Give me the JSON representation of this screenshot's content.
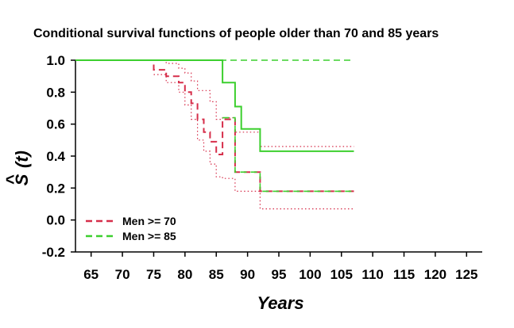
{
  "chart_data": {
    "type": "line",
    "title": "Conditional survival functions of people older than 70 and 85 years",
    "xlabel": "Years",
    "ylabel_main": "S",
    "ylabel_paren": "(t)",
    "ylabel_hat": "^",
    "xlim": [
      62.5,
      127.5
    ],
    "ylim": [
      -0.2,
      1.0
    ],
    "x_ticks": [
      65,
      70,
      75,
      80,
      85,
      90,
      95,
      100,
      105,
      110,
      115,
      120,
      125
    ],
    "y_ticks": [
      1.0,
      0.8,
      0.6,
      0.4,
      0.2,
      0.0,
      -0.2
    ],
    "y_tick_labels": [
      "1.0",
      "0.8",
      "0.6",
      "0.4",
      "0.2",
      "0.0",
      "-0.2"
    ],
    "grid": false,
    "legend_position": "bottom-left",
    "legend": [
      {
        "label": "Men >= 70",
        "color": "#d62e4a"
      },
      {
        "label": "Men >= 85",
        "color": "#3ccf2e"
      }
    ],
    "colors": {
      "men70": "#d62e4a",
      "men85": "#3ccf2e"
    },
    "series": [
      {
        "name": "Men >= 70",
        "role": "estimate",
        "color": "#d62e4a",
        "dash": "dashed",
        "points": [
          [
            62.5,
            1.0
          ],
          [
            75,
            1.0
          ],
          [
            75,
            0.94
          ],
          [
            77,
            0.94
          ],
          [
            77,
            0.9
          ],
          [
            79,
            0.9
          ],
          [
            79,
            0.86
          ],
          [
            80,
            0.86
          ],
          [
            80,
            0.8
          ],
          [
            81,
            0.8
          ],
          [
            81,
            0.73
          ],
          [
            82,
            0.73
          ],
          [
            82,
            0.63
          ],
          [
            83,
            0.63
          ],
          [
            83,
            0.55
          ],
          [
            84,
            0.55
          ],
          [
            84,
            0.49
          ],
          [
            85,
            0.49
          ],
          [
            85,
            0.41
          ],
          [
            86,
            0.41
          ],
          [
            86,
            0.63
          ],
          [
            88,
            0.63
          ],
          [
            88,
            0.3
          ],
          [
            92,
            0.3
          ],
          [
            92,
            0.18
          ],
          [
            107,
            0.18
          ]
        ]
      },
      {
        "name": "Men >= 70 upper CI",
        "role": "ci",
        "color": "#d62e4a",
        "dash": "dotted",
        "points": [
          [
            75,
            1.0
          ],
          [
            77,
            1.0
          ],
          [
            77,
            0.98
          ],
          [
            79,
            0.98
          ],
          [
            79,
            0.95
          ],
          [
            80,
            0.95
          ],
          [
            80,
            0.92
          ],
          [
            81,
            0.92
          ],
          [
            81,
            0.87
          ],
          [
            82,
            0.87
          ],
          [
            82,
            0.81
          ],
          [
            84,
            0.81
          ],
          [
            84,
            0.74
          ],
          [
            85,
            0.74
          ],
          [
            85,
            0.63
          ],
          [
            86,
            0.63
          ],
          [
            86,
            0.64
          ],
          [
            88,
            0.64
          ],
          [
            88,
            0.55
          ],
          [
            92,
            0.55
          ],
          [
            92,
            0.46
          ],
          [
            107,
            0.46
          ]
        ]
      },
      {
        "name": "Men >= 70 lower CI",
        "role": "ci",
        "color": "#d62e4a",
        "dash": "dotted",
        "points": [
          [
            75,
            0.91
          ],
          [
            77,
            0.91
          ],
          [
            77,
            0.86
          ],
          [
            79,
            0.86
          ],
          [
            79,
            0.8
          ],
          [
            80,
            0.8
          ],
          [
            80,
            0.72
          ],
          [
            81,
            0.72
          ],
          [
            81,
            0.63
          ],
          [
            82,
            0.63
          ],
          [
            82,
            0.5
          ],
          [
            83,
            0.5
          ],
          [
            83,
            0.43
          ],
          [
            84,
            0.43
          ],
          [
            84,
            0.35
          ],
          [
            85,
            0.35
          ],
          [
            85,
            0.27
          ],
          [
            86,
            0.27
          ],
          [
            86,
            0.26
          ],
          [
            88,
            0.26
          ],
          [
            88,
            0.18
          ],
          [
            92,
            0.18
          ],
          [
            92,
            0.07
          ],
          [
            107,
            0.07
          ]
        ]
      },
      {
        "name": "Men >= 85",
        "role": "estimate",
        "color": "#3ccf2e",
        "dash": "solid",
        "points": [
          [
            62.5,
            1.0
          ],
          [
            86,
            1.0
          ],
          [
            86,
            0.86
          ],
          [
            88,
            0.86
          ],
          [
            88,
            0.71
          ],
          [
            89,
            0.71
          ],
          [
            89,
            0.57
          ],
          [
            92,
            0.57
          ],
          [
            92,
            0.43
          ],
          [
            107,
            0.43
          ]
        ]
      },
      {
        "name": "Men >= 85 lower",
        "role": "secondary",
        "color": "#3ccf2e",
        "dash": "dashed",
        "points": [
          [
            86,
            0.64
          ],
          [
            88,
            0.64
          ],
          [
            88,
            0.3
          ],
          [
            92,
            0.3
          ],
          [
            92,
            0.18
          ],
          [
            107,
            0.18
          ]
        ]
      },
      {
        "name": "Men >= 85 upper",
        "role": "secondary",
        "color": "#3ccf2e",
        "dash": "dashed",
        "points": [
          [
            62.5,
            1.0
          ],
          [
            107,
            1.0
          ]
        ]
      }
    ]
  }
}
